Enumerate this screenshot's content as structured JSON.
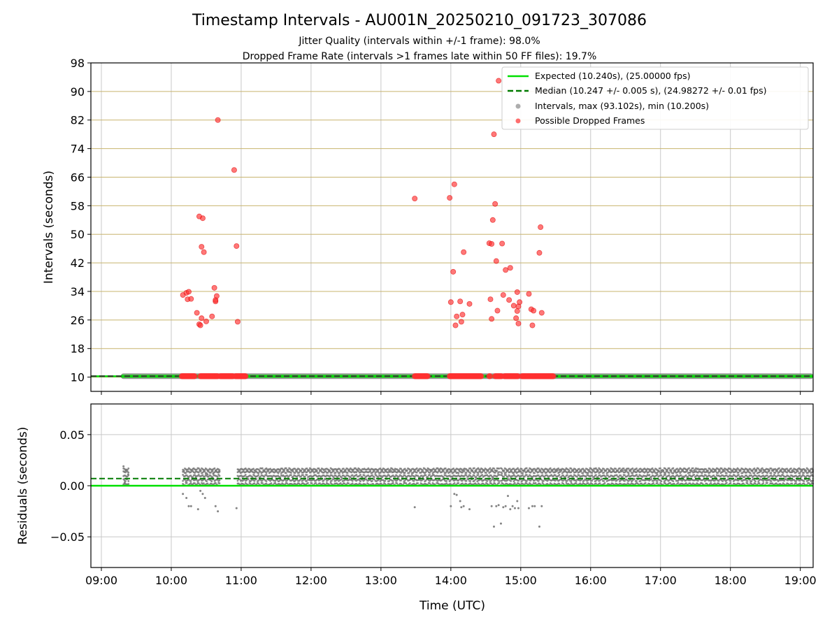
{
  "colors": {
    "expected": "#00e000",
    "median": "#007a00",
    "intervals": "#777777",
    "dropped": "#ff3030",
    "grid_vertical": "#c8c8c8",
    "grid_horizontal": "#c8b46e"
  },
  "chart_data": [
    {
      "type": "scatter",
      "title": "Timestamp Intervals - AU001N_20250210_091723_307086",
      "subtitle_lines": [
        "Jitter Quality (intervals within +/-1 frame): 98.0%",
        "Dropped Frame Rate (intervals >1 frames late within 50 FF files): 19.7%"
      ],
      "xlabel": "",
      "ylabel": "Intervals (seconds)",
      "xlim": [
        "08:51",
        "19:11"
      ],
      "ylim": [
        6,
        98
      ],
      "yticks": [
        10,
        18,
        26,
        34,
        42,
        50,
        58,
        66,
        74,
        82,
        90,
        98
      ],
      "grid": true,
      "legend_position": "top-right",
      "series": [
        {
          "name": "Expected (10.240s), (25.00000 fps)",
          "kind": "hline",
          "y": 10.24
        },
        {
          "name": "Median (10.247 +/- 0.005 s), (24.98272 +/- 0.01 fps)",
          "kind": "hline-dashed",
          "y": 10.247
        },
        {
          "name": "Intervals, max (93.102s), min (10.200s)",
          "kind": "band",
          "x_range": [
            "09:17",
            "19:11"
          ],
          "y": 10.25
        },
        {
          "name": "Possible Dropped Frames",
          "kind": "points",
          "points": [
            [
              "10:10",
              33.0
            ],
            [
              "10:13",
              33.6
            ],
            [
              "10:14",
              31.8
            ],
            [
              "10:15",
              33.9
            ],
            [
              "10:17",
              31.9
            ],
            [
              "10:22",
              28.0
            ],
            [
              "10:24",
              24.8
            ],
            [
              "10:25",
              24.5
            ],
            [
              "10:26",
              26.5
            ],
            [
              "10:26",
              46.5
            ],
            [
              "10:27",
              54.5
            ],
            [
              "10:28",
              45.0
            ],
            [
              "10:30",
              25.6
            ],
            [
              "10:24",
              55.0
            ],
            [
              "10:35",
              27.0
            ],
            [
              "10:37",
              35.0
            ],
            [
              "10:38",
              31.2
            ],
            [
              "10:38",
              31.6
            ],
            [
              "10:39",
              32.7
            ],
            [
              "10:40",
              82.0
            ],
            [
              "10:54",
              68.0
            ],
            [
              "10:56",
              46.7
            ],
            [
              "10:57",
              25.5
            ],
            [
              "13:29",
              60.0
            ],
            [
              "13:59",
              60.2
            ],
            [
              "14:00",
              31.0
            ],
            [
              "14:02",
              39.5
            ],
            [
              "14:03",
              64.0
            ],
            [
              "14:04",
              24.5
            ],
            [
              "14:05",
              27.0
            ],
            [
              "14:08",
              31.2
            ],
            [
              "14:09",
              25.5
            ],
            [
              "14:10",
              27.5
            ],
            [
              "14:11",
              45.0
            ],
            [
              "14:16",
              30.5
            ],
            [
              "14:33",
              47.5
            ],
            [
              "14:34",
              31.8
            ],
            [
              "14:35",
              47.3
            ],
            [
              "14:35",
              26.3
            ],
            [
              "14:36",
              54.0
            ],
            [
              "14:37",
              78.0
            ],
            [
              "14:38",
              58.5
            ],
            [
              "14:39",
              42.5
            ],
            [
              "14:40",
              28.6
            ],
            [
              "14:41",
              93.0
            ],
            [
              "14:44",
              47.4
            ],
            [
              "14:45",
              33.0
            ],
            [
              "14:47",
              40.0
            ],
            [
              "14:50",
              31.6
            ],
            [
              "14:51",
              40.6
            ],
            [
              "14:54",
              30.0
            ],
            [
              "14:56",
              26.5
            ],
            [
              "14:57",
              33.8
            ],
            [
              "14:57",
              28.5
            ],
            [
              "14:58",
              25.0
            ],
            [
              "14:58",
              29.8
            ],
            [
              "14:59",
              31.0
            ],
            [
              "15:07",
              33.3
            ],
            [
              "15:09",
              29.0
            ],
            [
              "15:10",
              24.5
            ],
            [
              "15:11",
              28.6
            ],
            [
              "15:16",
              44.8
            ],
            [
              "15:17",
              52.0
            ],
            [
              "15:18",
              28.0
            ]
          ],
          "baseline_clusters": [
            [
              "10:09",
              "10:20"
            ],
            [
              "10:25",
              "10:40"
            ],
            [
              "10:42",
              "10:53"
            ],
            [
              "10:55",
              "11:04"
            ],
            [
              "13:29",
              "13:40"
            ],
            [
              "13:59",
              "14:26"
            ],
            [
              "14:33",
              "14:34"
            ],
            [
              "14:38",
              "14:44"
            ],
            [
              "14:46",
              "14:58"
            ],
            [
              "15:01",
              "15:28"
            ]
          ]
        }
      ]
    },
    {
      "type": "scatter",
      "xlabel": "Time (UTC)",
      "ylabel": "Residuals (seconds)",
      "xlim": [
        "08:51",
        "19:11"
      ],
      "ylim": [
        -0.08,
        0.08
      ],
      "yticks": [
        0.05,
        0.0,
        -0.05
      ],
      "ytick_labels": [
        "0.05",
        "0.00",
        "−0.05"
      ],
      "xticks": [
        "09:00",
        "10:00",
        "11:00",
        "12:00",
        "13:00",
        "14:00",
        "15:00",
        "16:00",
        "17:00",
        "18:00",
        "19:00"
      ],
      "grid": true,
      "series": [
        {
          "name": "expected-residual",
          "kind": "hline",
          "y": 0.0
        },
        {
          "name": "median-residual",
          "kind": "hline-dashed",
          "y": 0.007
        },
        {
          "name": "residuals",
          "kind": "dense-band",
          "segments": [
            [
              "09:19",
              "09:24"
            ],
            [
              "10:10",
              "10:42"
            ],
            [
              "10:57",
              "14:42"
            ],
            [
              "14:43",
              "19:11"
            ]
          ],
          "levels": [
            0.0015,
            0.0055,
            0.0095,
            0.0135,
            0.016
          ],
          "outliers": [
            [
              "09:19",
              0.019
            ],
            [
              "09:21",
              0.015
            ],
            [
              "09:23",
              0.011
            ],
            [
              "09:20",
              0.003
            ],
            [
              "10:10",
              -0.008
            ],
            [
              "10:13",
              -0.012
            ],
            [
              "10:15",
              -0.02
            ],
            [
              "10:17",
              -0.02
            ],
            [
              "10:21",
              0.008
            ],
            [
              "10:23",
              -0.023
            ],
            [
              "10:25",
              -0.005
            ],
            [
              "10:27",
              -0.008
            ],
            [
              "10:29",
              -0.012
            ],
            [
              "10:31",
              0.011
            ],
            [
              "10:36",
              0.012
            ],
            [
              "10:38",
              -0.02
            ],
            [
              "10:40",
              -0.025
            ],
            [
              "10:41",
              0.014
            ],
            [
              "10:56",
              -0.022
            ],
            [
              "13:29",
              -0.021
            ],
            [
              "14:00",
              -0.02
            ],
            [
              "14:03",
              -0.008
            ],
            [
              "14:05",
              -0.009
            ],
            [
              "14:08",
              -0.015
            ],
            [
              "14:09",
              -0.021
            ],
            [
              "14:11",
              -0.02
            ],
            [
              "14:16",
              -0.023
            ],
            [
              "14:35",
              -0.02
            ],
            [
              "14:37",
              -0.04
            ],
            [
              "14:39",
              -0.02
            ],
            [
              "14:41",
              -0.019
            ],
            [
              "14:43",
              -0.037
            ],
            [
              "14:45",
              -0.021
            ],
            [
              "14:47",
              -0.02
            ],
            [
              "14:49",
              -0.01
            ],
            [
              "14:51",
              -0.023
            ],
            [
              "14:53",
              -0.02
            ],
            [
              "14:55",
              -0.022
            ],
            [
              "14:57",
              -0.015
            ],
            [
              "14:58",
              -0.022
            ],
            [
              "15:07",
              -0.022
            ],
            [
              "15:10",
              -0.02
            ],
            [
              "15:12",
              -0.02
            ],
            [
              "15:16",
              -0.04
            ],
            [
              "15:18",
              -0.02
            ]
          ]
        }
      ]
    }
  ]
}
